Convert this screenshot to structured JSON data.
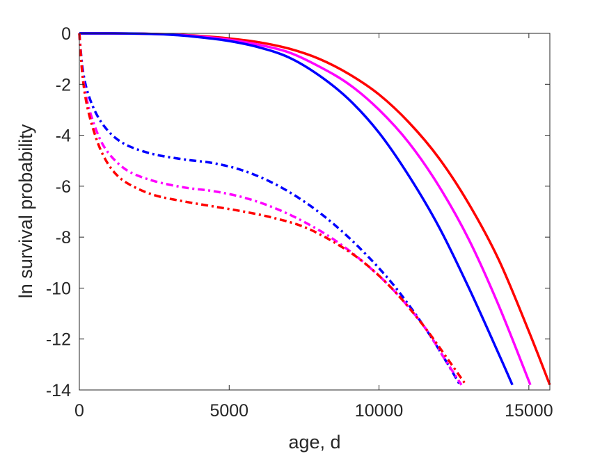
{
  "chart_data": {
    "type": "line",
    "title": "",
    "xlabel": "age, d",
    "ylabel": "ln survival probability",
    "xlim": [
      0,
      15700
    ],
    "ylim": [
      -14,
      0
    ],
    "xticks": [
      0,
      5000,
      10000,
      15000
    ],
    "yticks": [
      0,
      -2,
      -4,
      -6,
      -8,
      -10,
      -12,
      -14
    ],
    "xtick_labels": [
      "0",
      "5000",
      "10000",
      "15000"
    ],
    "ytick_labels": [
      "0",
      "-2",
      "-4",
      "-6",
      "-8",
      "-10",
      "-12",
      "-14"
    ],
    "grid": false,
    "legend": "none",
    "series": [
      {
        "color": "#ff0000",
        "style": "solid",
        "points": [
          [
            0,
            0
          ],
          [
            1000,
            0
          ],
          [
            2000,
            -0.01
          ],
          [
            3000,
            -0.04
          ],
          [
            4000,
            -0.1
          ],
          [
            5000,
            -0.2
          ],
          [
            6000,
            -0.35
          ],
          [
            7000,
            -0.6
          ],
          [
            8000,
            -1.0
          ],
          [
            9000,
            -1.6
          ],
          [
            10000,
            -2.4
          ],
          [
            11000,
            -3.5
          ],
          [
            12000,
            -4.9
          ],
          [
            13000,
            -6.7
          ],
          [
            14000,
            -8.9
          ],
          [
            15000,
            -11.7
          ],
          [
            15700,
            -13.8
          ]
        ]
      },
      {
        "color": "#ff00ff",
        "style": "solid",
        "points": [
          [
            0,
            0
          ],
          [
            1000,
            0
          ],
          [
            2000,
            -0.01
          ],
          [
            3000,
            -0.04
          ],
          [
            4000,
            -0.12
          ],
          [
            5000,
            -0.25
          ],
          [
            6000,
            -0.45
          ],
          [
            7000,
            -0.75
          ],
          [
            8000,
            -1.3
          ],
          [
            9000,
            -2.0
          ],
          [
            10000,
            -3.0
          ],
          [
            11000,
            -4.3
          ],
          [
            12000,
            -6.0
          ],
          [
            13000,
            -8.1
          ],
          [
            14000,
            -10.7
          ],
          [
            15050,
            -13.8
          ]
        ]
      },
      {
        "color": "#0000ff",
        "style": "solid",
        "points": [
          [
            0,
            0
          ],
          [
            1000,
            0
          ],
          [
            2000,
            -0.01
          ],
          [
            3000,
            -0.05
          ],
          [
            4000,
            -0.15
          ],
          [
            5000,
            -0.3
          ],
          [
            6000,
            -0.55
          ],
          [
            7000,
            -0.95
          ],
          [
            8000,
            -1.65
          ],
          [
            9000,
            -2.6
          ],
          [
            10000,
            -3.9
          ],
          [
            11000,
            -5.6
          ],
          [
            12000,
            -7.6
          ],
          [
            13000,
            -10.0
          ],
          [
            14000,
            -12.6
          ],
          [
            14450,
            -13.8
          ]
        ]
      },
      {
        "color": "#0000ff",
        "style": "dashdot",
        "points": [
          [
            0,
            0
          ],
          [
            100,
            -1.3
          ],
          [
            250,
            -2.2
          ],
          [
            500,
            -3.0
          ],
          [
            800,
            -3.6
          ],
          [
            1200,
            -4.1
          ],
          [
            1700,
            -4.45
          ],
          [
            2500,
            -4.75
          ],
          [
            3500,
            -4.95
          ],
          [
            4500,
            -5.1
          ],
          [
            5500,
            -5.4
          ],
          [
            6500,
            -5.9
          ],
          [
            7500,
            -6.6
          ],
          [
            8500,
            -7.5
          ],
          [
            9500,
            -8.6
          ],
          [
            10500,
            -9.9
          ],
          [
            11500,
            -11.5
          ],
          [
            12200,
            -12.8
          ],
          [
            12700,
            -13.8
          ]
        ]
      },
      {
        "color": "#ff00ff",
        "style": "dashdot",
        "points": [
          [
            0,
            0
          ],
          [
            100,
            -1.5
          ],
          [
            250,
            -2.6
          ],
          [
            500,
            -3.6
          ],
          [
            800,
            -4.4
          ],
          [
            1200,
            -5.0
          ],
          [
            1700,
            -5.45
          ],
          [
            2500,
            -5.8
          ],
          [
            3500,
            -6.05
          ],
          [
            4500,
            -6.2
          ],
          [
            5500,
            -6.45
          ],
          [
            6500,
            -6.85
          ],
          [
            7500,
            -7.4
          ],
          [
            8500,
            -8.1
          ],
          [
            9500,
            -9.0
          ],
          [
            10500,
            -10.1
          ],
          [
            11500,
            -11.5
          ],
          [
            12200,
            -12.8
          ],
          [
            12750,
            -13.8
          ]
        ]
      },
      {
        "color": "#ff0000",
        "style": "dashdot",
        "points": [
          [
            0,
            0
          ],
          [
            100,
            -1.6
          ],
          [
            250,
            -2.8
          ],
          [
            500,
            -3.9
          ],
          [
            800,
            -4.8
          ],
          [
            1200,
            -5.5
          ],
          [
            1700,
            -5.95
          ],
          [
            2500,
            -6.35
          ],
          [
            3500,
            -6.6
          ],
          [
            4500,
            -6.8
          ],
          [
            5500,
            -7.0
          ],
          [
            6500,
            -7.25
          ],
          [
            7500,
            -7.6
          ],
          [
            8500,
            -8.2
          ],
          [
            9500,
            -9.0
          ],
          [
            10500,
            -10.1
          ],
          [
            11500,
            -11.5
          ],
          [
            12300,
            -12.8
          ],
          [
            12900,
            -13.8
          ]
        ]
      }
    ]
  }
}
